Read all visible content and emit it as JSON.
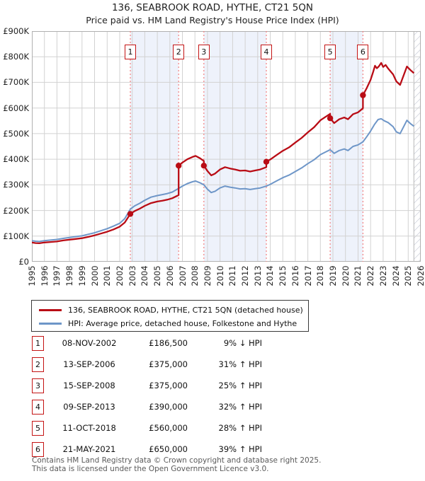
{
  "title": "136, SEABROOK ROAD, HYTHE, CT21 5QN",
  "subtitle": "Price paid vs. HM Land Registry's House Price Index (HPI)",
  "colors": {
    "property_line": "#b90c15",
    "hpi_line": "#6e96c8",
    "ownership_band": "#eef2fb",
    "grid": "#d2d2d2",
    "plot_border": "#b0b0b0",
    "sale_date_line": "#f28080",
    "badge_border": "#c41414",
    "hatch_line": "#c4c8d4",
    "footer_text": "#5a5a5a"
  },
  "y_axis": {
    "ticks": [
      "£900K",
      "£800K",
      "£700K",
      "£600K",
      "£500K",
      "£400K",
      "£300K",
      "£200K",
      "£100K",
      "£0"
    ],
    "max": 900000,
    "step": 100000
  },
  "x_axis": {
    "years": [
      "1995",
      "1996",
      "1997",
      "1998",
      "1999",
      "2000",
      "2001",
      "2002",
      "2003",
      "2004",
      "2005",
      "2006",
      "2007",
      "2008",
      "2009",
      "2010",
      "2011",
      "2012",
      "2013",
      "2014",
      "2015",
      "2016",
      "2017",
      "2018",
      "2019",
      "2020",
      "2021",
      "2022",
      "2023",
      "2024",
      "2025",
      "2026"
    ]
  },
  "chart_data": {
    "type": "line",
    "xlim": [
      1995,
      2026
    ],
    "ylim": [
      0,
      900000
    ],
    "grid": true,
    "legend_position": "below",
    "series": [
      {
        "name": "136, SEABROOK ROAD, HYTHE, CT21 5QN (detached house)",
        "color": "#b90c15",
        "points": [
          [
            1995.0,
            75000
          ],
          [
            1995.3,
            73000
          ],
          [
            1995.6,
            72000
          ],
          [
            1996.0,
            75000
          ],
          [
            1996.5,
            77000
          ],
          [
            1997.0,
            79000
          ],
          [
            1997.5,
            83000
          ],
          [
            1998.0,
            86000
          ],
          [
            1998.5,
            89000
          ],
          [
            1999.0,
            92000
          ],
          [
            1999.5,
            97000
          ],
          [
            2000.0,
            103000
          ],
          [
            2000.5,
            110000
          ],
          [
            2001.0,
            117000
          ],
          [
            2001.5,
            126000
          ],
          [
            2002.0,
            137000
          ],
          [
            2002.4,
            153000
          ],
          [
            2002.85,
            186500
          ],
          [
            2003.2,
            198000
          ],
          [
            2003.6,
            207000
          ],
          [
            2004.0,
            218000
          ],
          [
            2004.5,
            229000
          ],
          [
            2005.0,
            235000
          ],
          [
            2005.4,
            238000
          ],
          [
            2005.8,
            242000
          ],
          [
            2006.2,
            248000
          ],
          [
            2006.7,
            260000
          ],
          [
            2006.7,
            375000
          ],
          [
            2007.0,
            387000
          ],
          [
            2007.4,
            400000
          ],
          [
            2007.8,
            409000
          ],
          [
            2008.05,
            413000
          ],
          [
            2008.4,
            404000
          ],
          [
            2008.71,
            393000
          ],
          [
            2008.71,
            375000
          ],
          [
            2009.0,
            354000
          ],
          [
            2009.3,
            337000
          ],
          [
            2009.6,
            344000
          ],
          [
            2010.0,
            360000
          ],
          [
            2010.4,
            369000
          ],
          [
            2010.8,
            364000
          ],
          [
            2011.2,
            360000
          ],
          [
            2011.6,
            355000
          ],
          [
            2012.0,
            356000
          ],
          [
            2012.4,
            352000
          ],
          [
            2012.8,
            356000
          ],
          [
            2013.2,
            360000
          ],
          [
            2013.69,
            369000
          ],
          [
            2013.69,
            390000
          ],
          [
            2014.0,
            399000
          ],
          [
            2014.5,
            416000
          ],
          [
            2015.0,
            433000
          ],
          [
            2015.5,
            446000
          ],
          [
            2016.0,
            465000
          ],
          [
            2016.5,
            483000
          ],
          [
            2017.0,
            505000
          ],
          [
            2017.5,
            525000
          ],
          [
            2018.0,
            552000
          ],
          [
            2018.4,
            565000
          ],
          [
            2018.78,
            577000
          ],
          [
            2018.78,
            560000
          ],
          [
            2019.1,
            541000
          ],
          [
            2019.5,
            556000
          ],
          [
            2019.9,
            563000
          ],
          [
            2020.2,
            556000
          ],
          [
            2020.6,
            576000
          ],
          [
            2021.0,
            583000
          ],
          [
            2021.39,
            599000
          ],
          [
            2021.39,
            650000
          ],
          [
            2021.7,
            678000
          ],
          [
            2022.0,
            710000
          ],
          [
            2022.2,
            740000
          ],
          [
            2022.35,
            765000
          ],
          [
            2022.5,
            755000
          ],
          [
            2022.65,
            762000
          ],
          [
            2022.85,
            776000
          ],
          [
            2023.0,
            760000
          ],
          [
            2023.2,
            768000
          ],
          [
            2023.4,
            754000
          ],
          [
            2023.8,
            731000
          ],
          [
            2024.05,
            704000
          ],
          [
            2024.35,
            690000
          ],
          [
            2024.9,
            762000
          ],
          [
            2025.2,
            747000
          ],
          [
            2025.45,
            736000
          ]
        ]
      },
      {
        "name": "HPI: Average price, detached house, Folkestone and Hythe",
        "color": "#6e96c8",
        "points": [
          [
            1995.0,
            82000
          ],
          [
            1995.3,
            80000
          ],
          [
            1995.6,
            79000
          ],
          [
            1996.0,
            82000
          ],
          [
            1996.5,
            84500
          ],
          [
            1997.0,
            87000
          ],
          [
            1997.5,
            91000
          ],
          [
            1998.0,
            94500
          ],
          [
            1998.5,
            98000
          ],
          [
            1999.0,
            101000
          ],
          [
            1999.5,
            107000
          ],
          [
            2000.0,
            113000
          ],
          [
            2000.5,
            121000
          ],
          [
            2001.0,
            129000
          ],
          [
            2001.5,
            139000
          ],
          [
            2002.0,
            150000
          ],
          [
            2002.4,
            168000
          ],
          [
            2002.85,
            205000
          ],
          [
            2003.2,
            218000
          ],
          [
            2003.6,
            228000
          ],
          [
            2004.0,
            240000
          ],
          [
            2004.5,
            252000
          ],
          [
            2005.0,
            258000
          ],
          [
            2005.4,
            262000
          ],
          [
            2005.8,
            266000
          ],
          [
            2006.2,
            272000
          ],
          [
            2006.7,
            286000
          ],
          [
            2007.0,
            295000
          ],
          [
            2007.4,
            305000
          ],
          [
            2007.8,
            312000
          ],
          [
            2008.05,
            315000
          ],
          [
            2008.4,
            308000
          ],
          [
            2008.71,
            300000
          ],
          [
            2009.0,
            283000
          ],
          [
            2009.3,
            270000
          ],
          [
            2009.6,
            275000
          ],
          [
            2010.0,
            288000
          ],
          [
            2010.4,
            295000
          ],
          [
            2010.8,
            291000
          ],
          [
            2011.2,
            288000
          ],
          [
            2011.6,
            284000
          ],
          [
            2012.0,
            285000
          ],
          [
            2012.4,
            282000
          ],
          [
            2012.8,
            285000
          ],
          [
            2013.2,
            288000
          ],
          [
            2013.69,
            295000
          ],
          [
            2014.0,
            302000
          ],
          [
            2014.5,
            315000
          ],
          [
            2015.0,
            328000
          ],
          [
            2015.5,
            338000
          ],
          [
            2016.0,
            352000
          ],
          [
            2016.5,
            366000
          ],
          [
            2017.0,
            383000
          ],
          [
            2017.5,
            398000
          ],
          [
            2018.0,
            418000
          ],
          [
            2018.4,
            428000
          ],
          [
            2018.78,
            437000
          ],
          [
            2019.1,
            423000
          ],
          [
            2019.5,
            434000
          ],
          [
            2019.9,
            440000
          ],
          [
            2020.2,
            434000
          ],
          [
            2020.6,
            450000
          ],
          [
            2021.0,
            456000
          ],
          [
            2021.39,
            468000
          ],
          [
            2021.7,
            488000
          ],
          [
            2022.0,
            510000
          ],
          [
            2022.3,
            535000
          ],
          [
            2022.6,
            555000
          ],
          [
            2022.85,
            558000
          ],
          [
            2023.1,
            550000
          ],
          [
            2023.4,
            543000
          ],
          [
            2023.8,
            527000
          ],
          [
            2024.05,
            507000
          ],
          [
            2024.35,
            500000
          ],
          [
            2024.9,
            552000
          ],
          [
            2025.2,
            538000
          ],
          [
            2025.45,
            529000
          ]
        ]
      }
    ],
    "sales": [
      {
        "n": "1",
        "date": "08-NOV-2002",
        "x": 2002.85,
        "price": 186500
      },
      {
        "n": "2",
        "date": "13-SEP-2006",
        "x": 2006.7,
        "price": 375000
      },
      {
        "n": "3",
        "date": "15-SEP-2008",
        "x": 2008.71,
        "price": 375000
      },
      {
        "n": "4",
        "date": "09-SEP-2013",
        "x": 2013.69,
        "price": 390000
      },
      {
        "n": "5",
        "date": "11-OCT-2018",
        "x": 2018.78,
        "price": 560000
      },
      {
        "n": "6",
        "date": "21-MAY-2021",
        "x": 2021.39,
        "price": 650000
      }
    ],
    "ownership_bands": [
      [
        2002.85,
        2006.7
      ],
      [
        2008.71,
        2013.69
      ],
      [
        2018.78,
        2021.39
      ]
    ],
    "future_band_start": 2025.45
  },
  "legend": {
    "items": [
      {
        "label": "136, SEABROOK ROAD, HYTHE, CT21 5QN (detached house)",
        "color": "#b90c15"
      },
      {
        "label": "HPI: Average price, detached house, Folkestone and Hythe",
        "color": "#6e96c8"
      }
    ]
  },
  "table": {
    "rows": [
      {
        "num": "1",
        "date": "08-NOV-2002",
        "price": "£186,500",
        "delta": "9% ↓ HPI"
      },
      {
        "num": "2",
        "date": "13-SEP-2006",
        "price": "£375,000",
        "delta": "31% ↑ HPI"
      },
      {
        "num": "3",
        "date": "15-SEP-2008",
        "price": "£375,000",
        "delta": "25% ↑ HPI"
      },
      {
        "num": "4",
        "date": "09-SEP-2013",
        "price": "£390,000",
        "delta": "32% ↑ HPI"
      },
      {
        "num": "5",
        "date": "11-OCT-2018",
        "price": "£560,000",
        "delta": "28% ↑ HPI"
      },
      {
        "num": "6",
        "date": "21-MAY-2021",
        "price": "£650,000",
        "delta": "39% ↑ HPI"
      }
    ]
  },
  "footer": {
    "line1": "Contains HM Land Registry data © Crown copyright and database right 2025.",
    "line2": "This data is licensed under the Open Government Licence v3.0."
  }
}
